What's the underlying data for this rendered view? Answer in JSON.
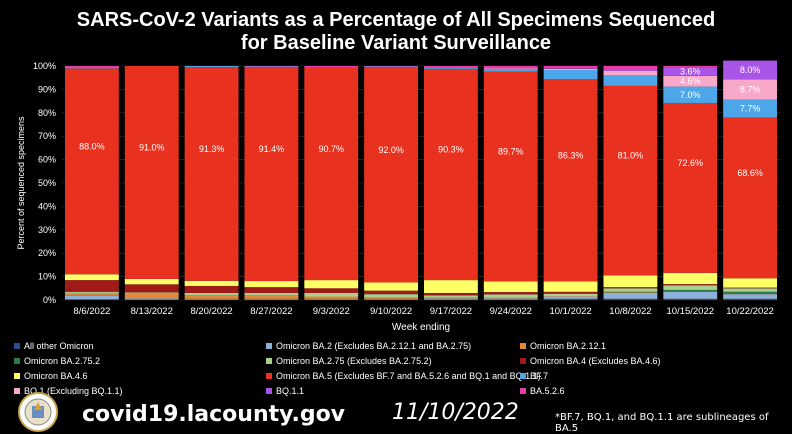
{
  "chart_data": {
    "type": "stacked_bar",
    "title_line1": "SARS-CoV-2 Variants as a Percentage of All Specimens Sequenced",
    "title_line2": "for Baseline Variant Surveillance",
    "xlabel": "Week ending",
    "ylabel": "Percent of sequenced specimens",
    "ylim": [
      0,
      100
    ],
    "yticks": [
      "0%",
      "10%",
      "20%",
      "30%",
      "40%",
      "50%",
      "60%",
      "70%",
      "80%",
      "90%",
      "100%"
    ],
    "categories": [
      "8/6/2022",
      "8/13/2022",
      "8/20/2022",
      "8/27/2022",
      "9/3/2022",
      "9/10/2022",
      "9/17/2022",
      "9/24/2022",
      "10/1/2022",
      "10/8/2022",
      "10/15/2022",
      "10/22/2022"
    ],
    "series": [
      {
        "name": "All other Omicron",
        "color": "#2a4f8f",
        "values": [
          0.3,
          0.2,
          0.2,
          0.2,
          0.2,
          0.2,
          0.2,
          0.2,
          0.5,
          0.5,
          0.5,
          0.5
        ]
      },
      {
        "name": "Omicron BA.2 (Excludes BA.2.12.1 and BA.2.75)",
        "color": "#8fb0d8",
        "values": [
          1.5,
          0.5,
          0.3,
          0.3,
          0.3,
          0.3,
          0.5,
          0.5,
          1.0,
          2.5,
          3.0,
          2.0
        ]
      },
      {
        "name": "Omicron BA.2.12.1",
        "color": "#e08a3c",
        "values": [
          1.2,
          2.0,
          1.5,
          1.5,
          1.0,
          0.5,
          0.3,
          0.2,
          0.2,
          0.2,
          0.2,
          0.2
        ]
      },
      {
        "name": "Omicron BA.2.75.2",
        "color": "#2d7a4a",
        "values": [
          0,
          0,
          0,
          0,
          0,
          0,
          0,
          0,
          0,
          0.3,
          0.6,
          0.8
        ]
      },
      {
        "name": "Omicron BA.2.75 (Excludes BA.2.75.2)",
        "color": "#a8d08d",
        "values": [
          0.5,
          0.5,
          1.0,
          1.0,
          1.5,
          1.5,
          1.0,
          1.5,
          1.0,
          1.5,
          2.0,
          1.5
        ]
      },
      {
        "name": "Omicron BA.4 (Excludes BA.4.6)",
        "color": "#a01a1a",
        "values": [
          5.0,
          3.5,
          3.0,
          2.5,
          2.0,
          1.5,
          1.0,
          1.0,
          0.8,
          0.5,
          0.5,
          0.3
        ]
      },
      {
        "name": "Omicron BA.4.6",
        "color": "#ffff66",
        "values": [
          2.5,
          2.3,
          2.2,
          2.6,
          3.5,
          3.5,
          5.5,
          4.5,
          4.5,
          5.0,
          4.8,
          4.0
        ]
      },
      {
        "name": "Omicron BA.5 (Excludes BF.7 and BA.5.2.6 and BQ.1 and BQ.1.1)",
        "color": "#e8311f",
        "values": [
          88.0,
          91.0,
          91.3,
          91.4,
          90.7,
          92.0,
          90.3,
          89.7,
          86.3,
          81.0,
          72.6,
          68.6
        ]
      },
      {
        "name": "BF.7",
        "color": "#4da6e8",
        "values": [
          0.5,
          0,
          0.5,
          0.3,
          0.3,
          0.3,
          0.5,
          1.0,
          4.0,
          4.5,
          7.0,
          7.7
        ]
      },
      {
        "name": "BQ.1 (Excluding BQ.1.1)",
        "color": "#f8a8c8",
        "values": [
          0,
          0,
          0,
          0,
          0,
          0,
          0.2,
          0.4,
          0.5,
          2.0,
          4.6,
          8.7
        ]
      },
      {
        "name": "BQ.1.1",
        "color": "#a855e8",
        "values": [
          0,
          0,
          0,
          0,
          0,
          0,
          0,
          0,
          0.2,
          0.5,
          3.6,
          8.0
        ]
      },
      {
        "name": "BA.5.2.6",
        "color": "#e83aa8",
        "values": [
          0.5,
          0,
          0,
          0.2,
          0.5,
          0.2,
          0.5,
          1.0,
          1.0,
          1.5,
          0.6,
          0
        ]
      }
    ],
    "data_labels": [
      {
        "series": "Omicron BA.5 (Excludes BF.7 and BA.5.2.6 and BQ.1 and BQ.1.1)",
        "labels": [
          "88.0%",
          "91.0%",
          "91.3%",
          "91.4%",
          "90.7%",
          "92.0%",
          "90.3%",
          "89.7%",
          "86.3%",
          "81.0%",
          "72.6%",
          "68.6%"
        ]
      },
      {
        "series": "BF.7",
        "category": "10/15/2022",
        "label": "7.0%"
      },
      {
        "series": "BF.7",
        "category": "10/22/2022",
        "label": "7.7%"
      },
      {
        "series": "BQ.1 (Excluding BQ.1.1)",
        "category": "10/15/2022",
        "label": "4.6%"
      },
      {
        "series": "BQ.1 (Excluding BQ.1.1)",
        "category": "10/22/2022",
        "label": "8.7%"
      },
      {
        "series": "BQ.1.1",
        "category": "10/15/2022",
        "label": "3.6%"
      },
      {
        "series": "BQ.1.1",
        "category": "10/22/2022",
        "label": "8.0%"
      }
    ]
  },
  "legend_order": [
    "All other Omicron",
    "Omicron BA.2 (Excludes BA.2.12.1 and BA.2.75)",
    "Omicron BA.2.12.1",
    "Omicron BA.2.75.2",
    "Omicron BA.2.75 (Excludes BA.2.75.2)",
    "Omicron BA.4 (Excludes BA.4.6)",
    "Omicron BA.4.6",
    "Omicron BA.5 (Excludes BF.7 and BA.5.2.6 and BQ.1 and BQ.1.1)",
    "BF.7",
    "BQ.1 (Excluding BQ.1.1)",
    "BQ.1.1",
    "BA.5.2.6"
  ],
  "footer": {
    "website": "covid19.lacounty.gov",
    "date": "11/10/2022",
    "note": "*BF.7, BQ.1, and BQ.1.1 are sublineages of BA.5"
  },
  "colors": {
    "background": "#000000",
    "text": "#ffffff",
    "grid": "#333333"
  }
}
